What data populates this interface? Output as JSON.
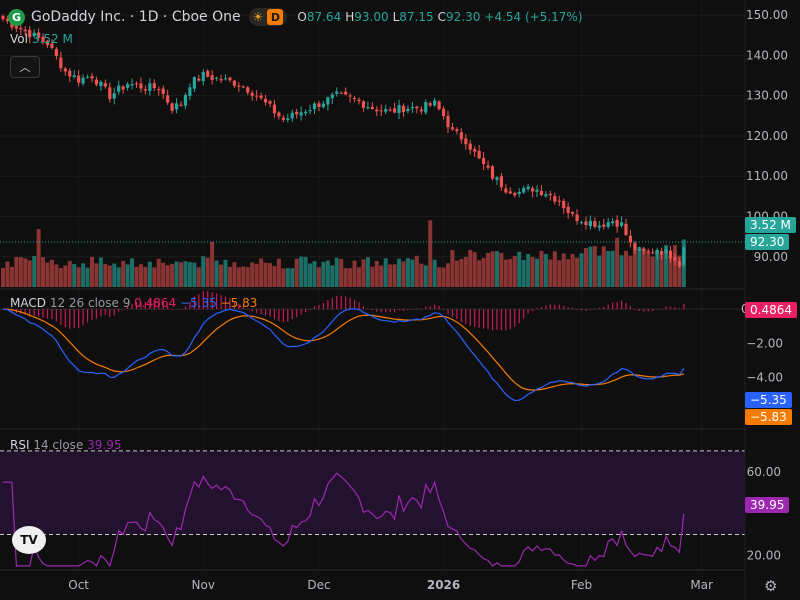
{
  "header": {
    "logo_letter": "G",
    "title": "GoDaddy Inc. · 1D · Cboe One",
    "session_badge": "D",
    "ohlc": [
      {
        "k": "O",
        "v": "87.64"
      },
      {
        "k": "H",
        "v": "93.00"
      },
      {
        "k": "L",
        "v": "87.15"
      },
      {
        "k": "C",
        "v": "92.30"
      },
      {
        "k": "",
        "v": "+4.54 (+5.17%)"
      }
    ]
  },
  "volume_legend": {
    "label": "Vol",
    "value": "3.52 M"
  },
  "price_tags": {
    "volume": "3.52 M",
    "last": "92.30"
  },
  "macd_legend": {
    "label": "MACD",
    "params": "12 26 close 9",
    "hist": "0.4864",
    "macd": "−5.35",
    "signal": "−5.83"
  },
  "rsi_legend": {
    "label": "RSI",
    "params": "14 close",
    "value": "39.95"
  },
  "tv_logo": "TV",
  "colors": {
    "up": "#26a69a",
    "down": "#ef5350",
    "macd": "#2962ff",
    "signal": "#f57c00",
    "hist": "#e91e63",
    "rsi": "#9c27b0",
    "rsi_band": "#2a1238"
  },
  "chart_data": {
    "type": "candlestick",
    "price_axis": {
      "ticks": [
        "90.00",
        "100.00",
        "110.00",
        "120.00",
        "130.00",
        "140.00",
        "150.00"
      ],
      "range": [
        83,
        153
      ]
    },
    "macd_axis": {
      "ticks": [
        "0.0000",
        "−2.00",
        "−4.00"
      ],
      "range": [
        -6.9,
        1.0
      ]
    },
    "rsi_axis": {
      "ticks": [
        "60.00",
        "20.00"
      ],
      "range": [
        14,
        79
      ],
      "bands": [
        70,
        30
      ]
    },
    "x_axis": {
      "labels": [
        "Oct",
        "Nov",
        "Dec",
        "2026",
        "Feb",
        "Mar"
      ],
      "label_index": [
        17,
        45,
        71,
        99,
        130,
        157
      ]
    },
    "keypoints": [
      [
        0,
        149
      ],
      [
        5,
        146
      ],
      [
        10,
        143
      ],
      [
        14,
        136
      ],
      [
        17,
        134
      ],
      [
        20,
        135
      ],
      [
        24,
        130
      ],
      [
        28,
        133
      ],
      [
        32,
        132
      ],
      [
        35,
        132
      ],
      [
        38,
        127
      ],
      [
        40,
        128
      ],
      [
        42,
        133
      ],
      [
        45,
        135
      ],
      [
        49,
        134
      ],
      [
        53,
        133
      ],
      [
        56,
        131
      ],
      [
        60,
        127
      ],
      [
        63,
        124
      ],
      [
        67,
        126
      ],
      [
        71,
        128
      ],
      [
        75,
        130
      ],
      [
        79,
        129
      ],
      [
        83,
        127
      ],
      [
        87,
        126
      ],
      [
        90,
        127
      ],
      [
        94,
        127
      ],
      [
        97,
        128
      ],
      [
        99,
        125
      ],
      [
        101,
        121
      ],
      [
        104,
        119
      ],
      [
        107,
        114
      ],
      [
        110,
        110
      ],
      [
        113,
        107
      ],
      [
        116,
        106
      ],
      [
        119,
        107
      ],
      [
        122,
        106
      ],
      [
        125,
        104
      ],
      [
        128,
        100
      ],
      [
        131,
        99
      ],
      [
        134,
        98
      ],
      [
        137,
        99
      ],
      [
        139,
        98
      ],
      [
        141,
        93
      ],
      [
        143,
        91
      ],
      [
        145,
        91
      ],
      [
        147,
        92
      ],
      [
        149,
        91
      ],
      [
        151,
        90
      ],
      [
        152,
        87.6
      ],
      [
        153,
        92.3
      ]
    ],
    "volume_spikes": [
      [
        8,
        1.0
      ],
      [
        47,
        0.78
      ],
      [
        96,
        1.15
      ],
      [
        138,
        0.85
      ],
      [
        153,
        0.82
      ]
    ]
  }
}
